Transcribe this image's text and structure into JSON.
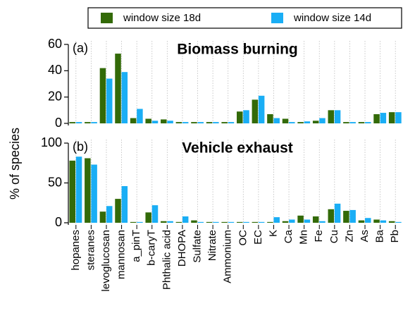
{
  "chart_data": [
    {
      "type": "bar",
      "title": "Biomass burning",
      "panel_label": "(a)",
      "ylabel": "% of species",
      "ylim": [
        0,
        60
      ],
      "yticks": [
        0,
        20,
        40,
        60
      ],
      "grid": true,
      "series": [
        {
          "name": "window size 18d",
          "color": "#336a08",
          "values": [
            1,
            1,
            42,
            53,
            4,
            3.5,
            3,
            1,
            1,
            1,
            1,
            9,
            18,
            7,
            3.5,
            1,
            2,
            10,
            1,
            1,
            7,
            8.5
          ]
        },
        {
          "name": "window size 14d",
          "color": "#1aaef5",
          "values": [
            1,
            1,
            34,
            39,
            11,
            2,
            2,
            1,
            1,
            1,
            1,
            10,
            21,
            4,
            1,
            1.5,
            4,
            10,
            1,
            1,
            8,
            8.5
          ]
        }
      ]
    },
    {
      "type": "bar",
      "title": "Vehicle exhaust",
      "panel_label": "(b)",
      "ylim": [
        0,
        100
      ],
      "yticks": [
        0,
        50,
        100
      ],
      "grid": true,
      "categories": [
        "hopanes",
        "steranes",
        "levoglucosan",
        "mannosan",
        "a_pinT",
        "b-caryT",
        "Phthalic acid",
        "DHOPA",
        "Sulfate",
        "Nitrate",
        "Ammonium",
        "OC",
        "EC",
        "K",
        "Ca",
        "Mn",
        "Fe",
        "Cu",
        "Zn",
        "As",
        "Ba",
        "Pb"
      ],
      "series": [
        {
          "color": "#336a08",
          "values": [
            78,
            81,
            14,
            30,
            1,
            13,
            2,
            1,
            3,
            1,
            1,
            1,
            1,
            1,
            2,
            9,
            8,
            17,
            15,
            3,
            4,
            2
          ]
        },
        {
          "color": "#1aaef5",
          "values": [
            83,
            73,
            21,
            46,
            1,
            22,
            2,
            8,
            1,
            1,
            1,
            1,
            1,
            7,
            4,
            4,
            2,
            24,
            16,
            6,
            3,
            1
          ]
        }
      ]
    }
  ]
}
